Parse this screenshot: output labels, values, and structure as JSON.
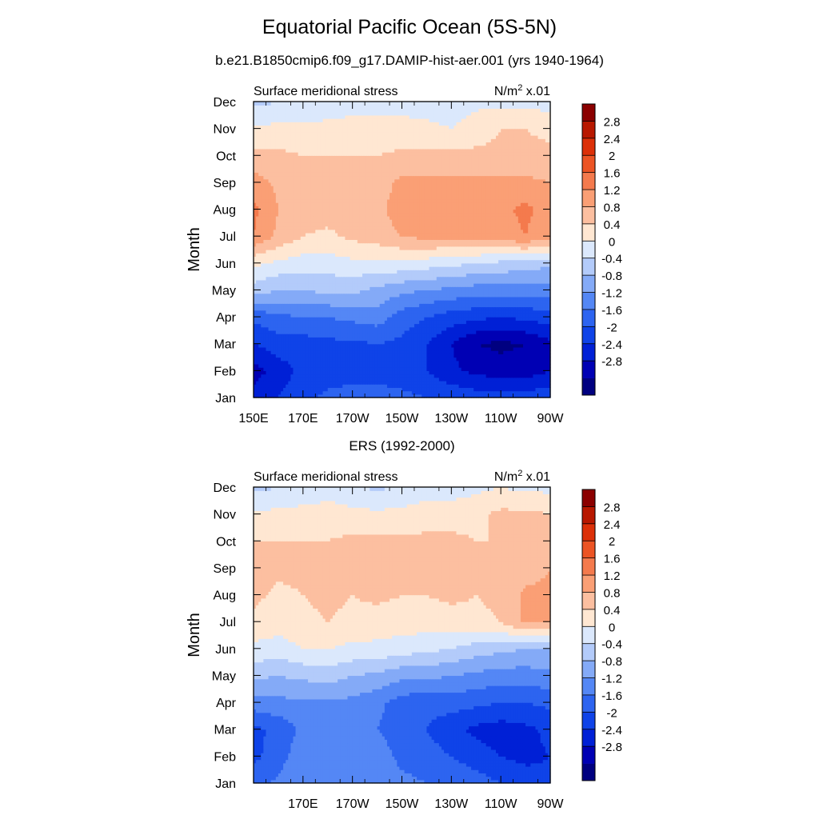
{
  "figure": {
    "title": "Equatorial Pacific Ocean (5S-5N)",
    "subtitle": "b.e21.B1850cmip6.f09_g17.DAMIP-hist-aer.001 (yrs 1940-1964)"
  },
  "chart_data": [
    {
      "type": "heatmap",
      "title": "",
      "left_string": "Surface meridional stress",
      "right_string": "N/m",
      "right_string_sup": "2",
      "right_string_tail": " x.01",
      "xlabel": "",
      "ylabel": "Month",
      "x_tick_labels": [
        "150E",
        "170E",
        "170W",
        "150W",
        "130W",
        "110W",
        "90W"
      ],
      "y_tick_labels": [
        "Jan",
        "Feb",
        "Mar",
        "Apr",
        "May",
        "Jun",
        "Jul",
        "Aug",
        "Sep",
        "Oct",
        "Nov",
        "Dec"
      ],
      "x_range_deg_east": [
        150,
        270
      ],
      "colorbar_labels": [
        "2.8",
        "2.4",
        "2",
        "1.6",
        "1.2",
        "0.8",
        "0.4",
        "0",
        "-0.4",
        "-0.8",
        "-1.2",
        "-1.6",
        "-2",
        "-2.4",
        "-2.8"
      ],
      "x": [
        150,
        160,
        170,
        180,
        190,
        200,
        210,
        220,
        230,
        240,
        250,
        260,
        270
      ],
      "y": [
        1,
        2,
        3,
        4,
        5,
        6,
        7,
        8,
        9,
        10,
        11,
        12
      ],
      "z": [
        [
          -2.2,
          -2.0,
          -1.7,
          -1.5,
          -1.4,
          -1.4,
          -1.5,
          -1.6,
          -1.7,
          -1.8,
          -1.8,
          -1.8,
          -1.7
        ],
        [
          -2.6,
          -2.2,
          -1.9,
          -1.8,
          -1.8,
          -1.8,
          -1.8,
          -2.0,
          -2.3,
          -2.5,
          -2.6,
          -2.6,
          -2.4
        ],
        [
          -2.0,
          -1.8,
          -1.8,
          -1.7,
          -1.7,
          -1.6,
          -1.7,
          -2.0,
          -2.4,
          -2.8,
          -2.9,
          -2.8,
          -2.5
        ],
        [
          -1.5,
          -1.3,
          -1.2,
          -1.2,
          -1.1,
          -1.0,
          -1.4,
          -1.6,
          -1.8,
          -1.9,
          -2.0,
          -1.9,
          -1.8
        ],
        [
          -0.2,
          -0.4,
          -0.4,
          -0.3,
          -0.3,
          -0.5,
          -0.7,
          -0.8,
          -0.9,
          -1.0,
          -1.0,
          -1.0,
          -1.0
        ],
        [
          0.5,
          0.3,
          0.2,
          0.2,
          0.3,
          0.3,
          0.3,
          0.2,
          0.1,
          0.0,
          -0.1,
          -0.2,
          -0.3
        ],
        [
          1.6,
          1.1,
          0.8,
          0.7,
          0.9,
          1.0,
          1.2,
          1.3,
          1.3,
          1.3,
          1.4,
          1.6,
          1.3
        ],
        [
          1.7,
          1.2,
          1.0,
          1.0,
          1.0,
          1.1,
          1.4,
          1.6,
          1.5,
          1.4,
          1.5,
          1.7,
          1.4
        ],
        [
          1.4,
          1.1,
          1.0,
          0.9,
          0.9,
          1.0,
          1.3,
          1.3,
          1.3,
          1.3,
          1.3,
          1.3,
          1.2
        ],
        [
          0.9,
          0.9,
          0.8,
          0.8,
          0.8,
          0.8,
          0.9,
          0.9,
          0.9,
          0.9,
          0.9,
          0.9,
          0.9
        ],
        [
          0.5,
          0.5,
          0.5,
          0.5,
          0.5,
          0.5,
          0.5,
          0.5,
          0.4,
          0.6,
          0.8,
          0.8,
          0.7
        ],
        [
          -0.1,
          0.0,
          0.1,
          0.2,
          0.3,
          0.3,
          0.3,
          0.2,
          0.2,
          0.3,
          0.3,
          0.3,
          0.2
        ]
      ]
    },
    {
      "type": "heatmap",
      "title": "ERS (1992-2000)",
      "left_string": "Surface meridional stress",
      "right_string": "N/m",
      "right_string_sup": "2",
      "right_string_tail": " x.01",
      "xlabel": "",
      "ylabel": "Month",
      "x_tick_labels": [
        "",
        "170E",
        "170W",
        "150W",
        "130W",
        "110W",
        "90W"
      ],
      "y_tick_labels": [
        "Jan",
        "Feb",
        "Mar",
        "Apr",
        "May",
        "Jun",
        "Jul",
        "Aug",
        "Sep",
        "Oct",
        "Nov",
        "Dec"
      ],
      "x_range_deg_east": [
        150,
        270
      ],
      "colorbar_labels": [
        "2.8",
        "2.4",
        "2",
        "1.6",
        "1.2",
        "0.8",
        "0.4",
        "0",
        "-0.4",
        "-0.8",
        "-1.2",
        "-1.6",
        "-2",
        "-2.4",
        "-2.8"
      ],
      "x": [
        150,
        160,
        170,
        180,
        190,
        200,
        210,
        220,
        230,
        240,
        250,
        260,
        270
      ],
      "y": [
        1,
        2,
        3,
        4,
        5,
        6,
        7,
        8,
        9,
        10,
        11,
        12
      ],
      "z": [
        [
          -1.4,
          -1.1,
          -0.8,
          -0.9,
          -1.0,
          -1.0,
          -1.1,
          -1.2,
          -1.3,
          -1.4,
          -1.6,
          -1.8,
          -1.9
        ],
        [
          -1.7,
          -1.4,
          -0.9,
          -1.2,
          -1.1,
          -1.0,
          -1.3,
          -1.4,
          -1.6,
          -1.8,
          -2.0,
          -2.1,
          -2.0
        ],
        [
          -1.7,
          -1.5,
          -1.1,
          -1.1,
          -1.1,
          -1.2,
          -1.4,
          -1.6,
          -1.9,
          -2.1,
          -2.2,
          -2.1,
          -1.9
        ],
        [
          -1.0,
          -0.9,
          -0.9,
          -0.9,
          -0.9,
          -1.1,
          -1.4,
          -1.5,
          -1.4,
          -1.5,
          -1.6,
          -1.6,
          -1.5
        ],
        [
          -0.3,
          -0.4,
          -0.3,
          -0.2,
          -0.4,
          -0.5,
          -0.7,
          -0.7,
          -0.8,
          -0.9,
          -1.0,
          -1.0,
          -0.9
        ],
        [
          0.3,
          0.2,
          0.4,
          0.4,
          0.3,
          0.3,
          0.2,
          0.1,
          0.0,
          -0.2,
          -0.3,
          -0.4,
          -0.4
        ],
        [
          0.7,
          0.6,
          0.7,
          0.8,
          0.7,
          0.6,
          0.6,
          0.6,
          0.6,
          0.7,
          0.8,
          1.3,
          1.2
        ],
        [
          0.9,
          0.7,
          0.8,
          0.9,
          0.8,
          0.9,
          0.8,
          0.8,
          0.9,
          0.8,
          0.9,
          1.3,
          1.3
        ],
        [
          1.2,
          0.9,
          0.9,
          0.8,
          0.9,
          0.9,
          0.9,
          0.9,
          0.9,
          0.8,
          0.9,
          1.0,
          1.2
        ],
        [
          0.8,
          0.8,
          0.8,
          0.8,
          0.9,
          0.9,
          0.9,
          0.9,
          0.9,
          0.8,
          0.8,
          0.9,
          1.0
        ],
        [
          0.5,
          0.5,
          0.6,
          0.6,
          0.5,
          0.5,
          0.5,
          0.6,
          0.6,
          0.7,
          0.9,
          0.9,
          0.8
        ],
        [
          -0.1,
          0.0,
          0.0,
          0.2,
          0.1,
          -0.1,
          0.1,
          0.2,
          0.2,
          0.3,
          0.4,
          0.3,
          0.3
        ]
      ]
    }
  ],
  "colors": {
    "levels": [
      "#000080",
      "#0000b4",
      "#0020d6",
      "#0f43e8",
      "#2d64f0",
      "#5487f5",
      "#84aaf7",
      "#b3cbfa",
      "#dbe8fc",
      "#ffe7d2",
      "#fcbfa0",
      "#fa9f75",
      "#f47a4d",
      "#ec5424",
      "#dc3008",
      "#b81800",
      "#8b0000"
    ]
  }
}
